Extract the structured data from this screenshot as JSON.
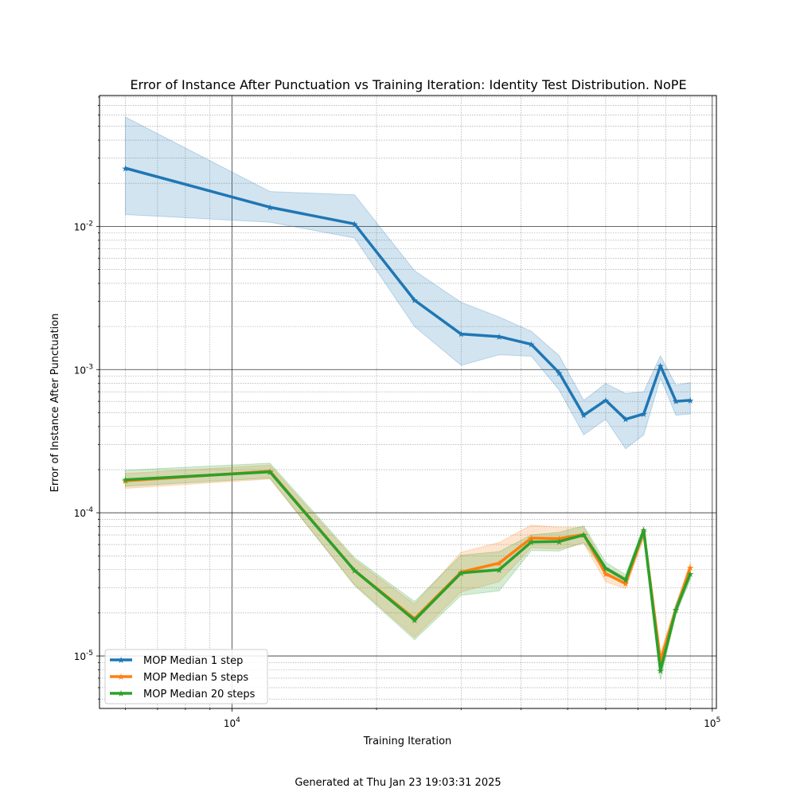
{
  "footer_text": "Generated at Thu Jan 23 19:03:31 2025",
  "chart_data": {
    "type": "line",
    "title": "Error of Instance After Punctuation vs Training Iteration: Identity Test Distribution. NoPE",
    "xlabel": "Training Iteration",
    "ylabel": "Error of Instance After Punctuation",
    "xscale": "log",
    "yscale": "log",
    "xlim": [
      5300,
      102000
    ],
    "ylim": [
      4.3e-06,
      8.5e-06
    ],
    "ylim_note": "",
    "grid": true,
    "legend_position": "lower-left",
    "x_ticks": [
      {
        "value": 10000,
        "label": "10^4"
      },
      {
        "value": 100000,
        "label": "10^5"
      }
    ],
    "y_ticks": [
      {
        "value": 1e-05,
        "label": "10^-5"
      },
      {
        "value": 0.0001,
        "label": "10^-4"
      },
      {
        "value": 0.001,
        "label": "10^-3"
      },
      {
        "value": 0.01,
        "label": "10^-2"
      }
    ],
    "x": [
      6000,
      12000,
      18000,
      24000,
      30000,
      36000,
      42000,
      48000,
      54000,
      60000,
      66000,
      72000,
      78000,
      84000,
      90000
    ],
    "series": [
      {
        "name": "MOP Median 1 step",
        "color": "#1f77b4",
        "values": [
          0.0255,
          0.0136,
          0.0104,
          0.00305,
          0.00177,
          0.0017,
          0.0015,
          0.00095,
          0.00048,
          0.00061,
          0.00045,
          0.00049,
          0.00106,
          0.0006,
          0.00061
        ],
        "lower": [
          0.0121,
          0.0107,
          0.0083,
          0.002,
          0.00107,
          0.00127,
          0.00124,
          0.00072,
          0.00035,
          0.00045,
          0.00028,
          0.00035,
          0.00087,
          0.00048,
          0.00049
        ],
        "upper": [
          0.058,
          0.0175,
          0.0166,
          0.0049,
          0.00295,
          0.00233,
          0.00185,
          0.00125,
          0.00061,
          0.0008,
          0.00068,
          0.0007,
          0.00125,
          0.00078,
          0.00081
        ]
      },
      {
        "name": "MOP Median 5 steps",
        "color": "#ff7f0e",
        "values": [
          0.000167,
          0.000195,
          3.95e-05,
          1.82e-05,
          3.85e-05,
          4.45e-05,
          6.65e-05,
          6.6e-05,
          7.05e-05,
          3.75e-05,
          3.2e-05,
          7.35e-05,
          9.3e-06,
          2.1e-05,
          4.15e-05
        ],
        "lower": [
          0.000148,
          0.000172,
          3.15e-05,
          1.35e-05,
          2.8e-05,
          3.3e-05,
          5.7e-05,
          5.6e-05,
          6.1e-05,
          3.3e-05,
          2.95e-05,
          6.6e-05,
          7.8e-06,
          1.95e-05,
          3.8e-05
        ],
        "upper": [
          0.000188,
          0.000215,
          4.7e-05,
          2.3e-05,
          5.3e-05,
          6.2e-05,
          8.2e-05,
          7.9e-05,
          7.9e-05,
          4.2e-05,
          3.55e-05,
          7.8e-05,
          1.05e-05,
          2.3e-05,
          4.5e-05
        ]
      },
      {
        "name": "MOP Median 20 steps",
        "color": "#2ca02c",
        "values": [
          0.00017,
          0.000193,
          3.95e-05,
          1.78e-05,
          3.8e-05,
          4e-05,
          6.25e-05,
          6.3e-05,
          7e-05,
          4.1e-05,
          3.4e-05,
          7.55e-05,
          7.9e-06,
          2.1e-05,
          3.75e-05
        ],
        "lower": [
          0.000153,
          0.000175,
          3.1e-05,
          1.3e-05,
          2.65e-05,
          2.85e-05,
          5.45e-05,
          5.4e-05,
          6.2e-05,
          3.8e-05,
          3.15e-05,
          6.9e-05,
          6.8e-06,
          1.95e-05,
          3.4e-05
        ],
        "upper": [
          0.000198,
          0.000222,
          4.85e-05,
          2.4e-05,
          5.05e-05,
          5.35e-05,
          7e-05,
          7.3e-05,
          8.1e-05,
          4.5e-05,
          3.7e-05,
          8.1e-05,
          9.5e-06,
          2.3e-05,
          4.1e-05
        ]
      }
    ]
  }
}
